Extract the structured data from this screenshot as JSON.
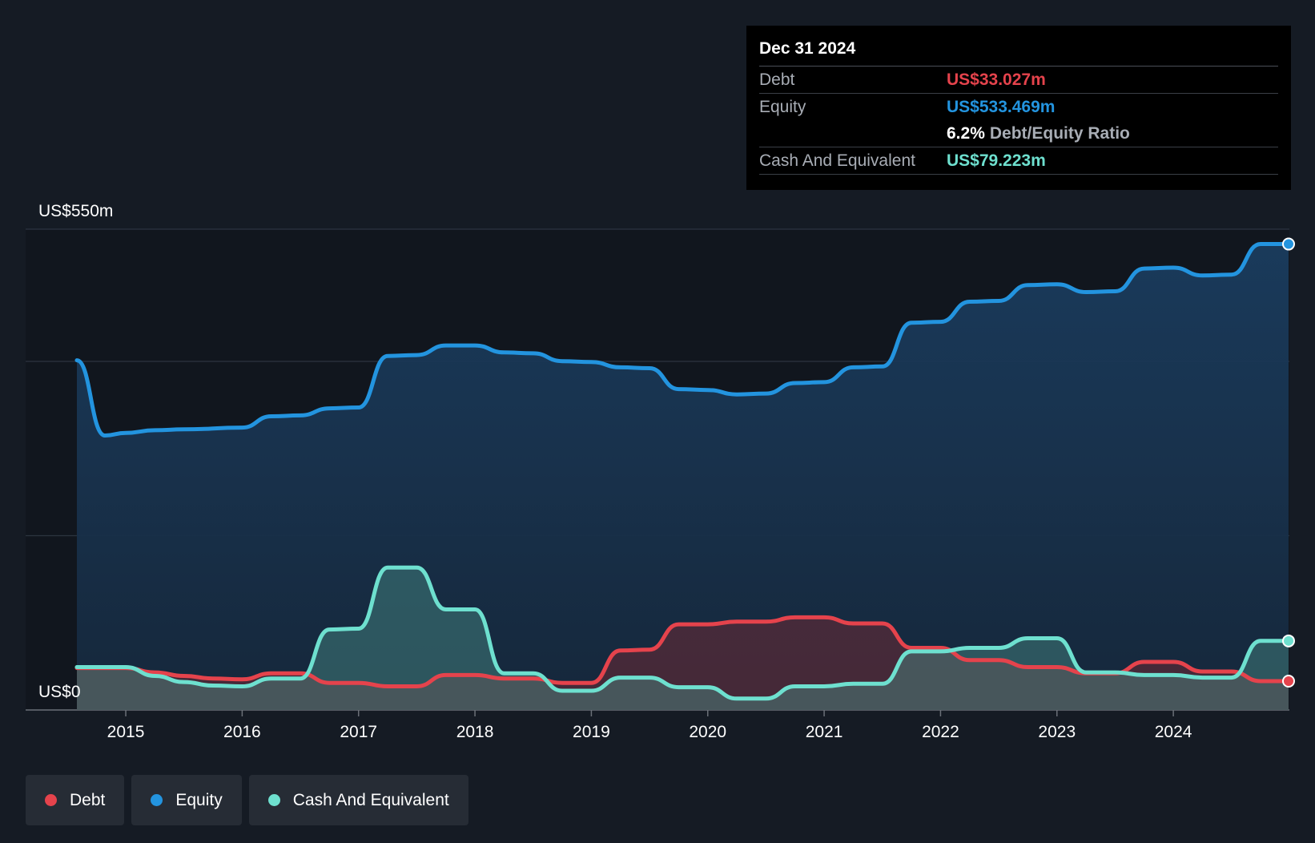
{
  "tooltip": {
    "date": "Dec 31 2024",
    "debt_label": "Debt",
    "debt_value": "US$33.027m",
    "equity_label": "Equity",
    "equity_value": "US$533.469m",
    "ratio_value": "6.2%",
    "ratio_label": "Debt/Equity Ratio",
    "cash_label": "Cash And Equivalent",
    "cash_value": "US$79.223m"
  },
  "legend": [
    {
      "label": "Debt",
      "color": "#e5434c"
    },
    {
      "label": "Equity",
      "color": "#2394df"
    },
    {
      "label": "Cash And Equivalent",
      "color": "#6ee0cf"
    }
  ],
  "chart_data": {
    "type": "area",
    "title": "",
    "xlabel": "",
    "ylabel": "",
    "y_top_label": "US$550m",
    "y_bottom_label": "US$0",
    "ylim": [
      0,
      550
    ],
    "xlim": [
      2014.58,
      2024.99
    ],
    "x_ticks": [
      "2015",
      "2016",
      "2017",
      "2018",
      "2019",
      "2020",
      "2021",
      "2022",
      "2023",
      "2024"
    ],
    "grid": "horizontal",
    "legend_position": "bottom-left",
    "series": [
      {
        "name": "Equity",
        "color": "#2394df",
        "points": [
          [
            2014.58,
            400
          ],
          [
            2014.82,
            314
          ],
          [
            2015.0,
            317
          ],
          [
            2015.25,
            320
          ],
          [
            2015.5,
            321
          ],
          [
            2016.0,
            323
          ],
          [
            2016.25,
            336
          ],
          [
            2016.5,
            337
          ],
          [
            2016.75,
            345
          ],
          [
            2017.0,
            346
          ],
          [
            2017.25,
            405
          ],
          [
            2017.5,
            406
          ],
          [
            2017.75,
            417
          ],
          [
            2018.0,
            417
          ],
          [
            2018.25,
            409
          ],
          [
            2018.5,
            408
          ],
          [
            2018.75,
            399
          ],
          [
            2019.0,
            398
          ],
          [
            2019.25,
            392
          ],
          [
            2019.5,
            391
          ],
          [
            2019.75,
            367
          ],
          [
            2020.0,
            366
          ],
          [
            2020.25,
            361
          ],
          [
            2020.5,
            362
          ],
          [
            2020.75,
            374
          ],
          [
            2021.0,
            375
          ],
          [
            2021.25,
            392
          ],
          [
            2021.5,
            393
          ],
          [
            2021.75,
            443
          ],
          [
            2022.0,
            444
          ],
          [
            2022.25,
            467
          ],
          [
            2022.5,
            468
          ],
          [
            2022.75,
            486
          ],
          [
            2023.0,
            487
          ],
          [
            2023.25,
            478
          ],
          [
            2023.5,
            479
          ],
          [
            2023.75,
            505
          ],
          [
            2024.0,
            506
          ],
          [
            2024.25,
            497
          ],
          [
            2024.5,
            498
          ],
          [
            2024.75,
            533
          ],
          [
            2024.99,
            533
          ]
        ]
      },
      {
        "name": "Debt",
        "color": "#e5434c",
        "points": [
          [
            2014.58,
            48
          ],
          [
            2015.0,
            48
          ],
          [
            2015.25,
            43
          ],
          [
            2015.5,
            39
          ],
          [
            2015.75,
            36
          ],
          [
            2016.0,
            35
          ],
          [
            2016.25,
            42
          ],
          [
            2016.5,
            42
          ],
          [
            2016.75,
            31
          ],
          [
            2017.0,
            31
          ],
          [
            2017.25,
            27
          ],
          [
            2017.5,
            27
          ],
          [
            2017.75,
            40
          ],
          [
            2018.0,
            40
          ],
          [
            2018.25,
            36
          ],
          [
            2018.5,
            36
          ],
          [
            2018.75,
            31
          ],
          [
            2019.0,
            31
          ],
          [
            2019.25,
            68
          ],
          [
            2019.5,
            69
          ],
          [
            2019.75,
            98
          ],
          [
            2020.0,
            98
          ],
          [
            2020.25,
            101
          ],
          [
            2020.5,
            101
          ],
          [
            2020.75,
            106
          ],
          [
            2021.0,
            106
          ],
          [
            2021.25,
            99
          ],
          [
            2021.5,
            99
          ],
          [
            2021.75,
            71
          ],
          [
            2022.0,
            71
          ],
          [
            2022.25,
            57
          ],
          [
            2022.5,
            57
          ],
          [
            2022.75,
            49
          ],
          [
            2023.0,
            49
          ],
          [
            2023.25,
            42
          ],
          [
            2023.5,
            42
          ],
          [
            2023.75,
            55
          ],
          [
            2024.0,
            55
          ],
          [
            2024.25,
            44
          ],
          [
            2024.5,
            44
          ],
          [
            2024.75,
            33
          ],
          [
            2024.99,
            33
          ]
        ]
      },
      {
        "name": "Cash And Equivalent",
        "color": "#6ee0cf",
        "points": [
          [
            2014.58,
            49
          ],
          [
            2015.0,
            49
          ],
          [
            2015.25,
            39
          ],
          [
            2015.5,
            32
          ],
          [
            2015.75,
            28
          ],
          [
            2016.0,
            27
          ],
          [
            2016.25,
            36
          ],
          [
            2016.5,
            36
          ],
          [
            2016.75,
            92
          ],
          [
            2017.0,
            93
          ],
          [
            2017.25,
            163
          ],
          [
            2017.5,
            163
          ],
          [
            2017.75,
            115
          ],
          [
            2018.0,
            115
          ],
          [
            2018.25,
            42
          ],
          [
            2018.5,
            42
          ],
          [
            2018.75,
            22
          ],
          [
            2019.0,
            22
          ],
          [
            2019.25,
            37
          ],
          [
            2019.5,
            37
          ],
          [
            2019.75,
            26
          ],
          [
            2020.0,
            26
          ],
          [
            2020.25,
            13
          ],
          [
            2020.5,
            13
          ],
          [
            2020.75,
            27
          ],
          [
            2021.0,
            27
          ],
          [
            2021.25,
            30
          ],
          [
            2021.5,
            30
          ],
          [
            2021.75,
            67
          ],
          [
            2022.0,
            67
          ],
          [
            2022.25,
            71
          ],
          [
            2022.5,
            71
          ],
          [
            2022.75,
            82
          ],
          [
            2023.0,
            82
          ],
          [
            2023.25,
            43
          ],
          [
            2023.5,
            43
          ],
          [
            2023.75,
            40
          ],
          [
            2024.0,
            40
          ],
          [
            2024.25,
            37
          ],
          [
            2024.5,
            37
          ],
          [
            2024.75,
            79
          ],
          [
            2024.99,
            79
          ]
        ]
      }
    ]
  }
}
